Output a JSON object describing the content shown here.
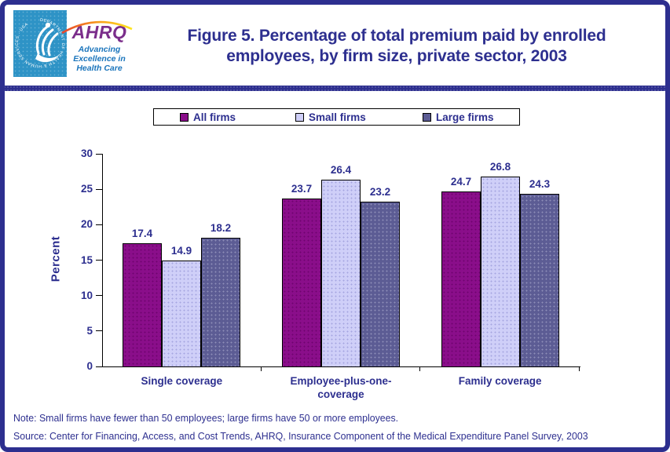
{
  "header": {
    "logo": {
      "hhs_seal_text": "DEPARTMENT OF HEALTH & HUMAN SERVICES · USA",
      "acronym": "AHRQ",
      "tagline": "Advancing\nExcellence in\nHealth Care"
    },
    "title": "Figure 5. Percentage of total premium paid by enrolled\nemployees, by firm size, private sector, 2003"
  },
  "legend": {
    "items": [
      {
        "label": "All firms",
        "color": "#8A0E8A",
        "dot_color": "#6E046E"
      },
      {
        "label": "Small firms",
        "color": "#CFCFF8",
        "dot_color": "#A5A5E0"
      },
      {
        "label": "Large firms",
        "color": "#5C5C94",
        "dot_color": "#8E8EB8"
      }
    ]
  },
  "chart_data": {
    "type": "bar",
    "title": "Percentage of total premium paid by enrolled employees, by firm size, private sector, 2003",
    "categories": [
      "Single coverage",
      "Employee-plus-one-\ncoverage",
      "Family coverage"
    ],
    "series": [
      {
        "name": "All firms",
        "color": "#8A0E8A",
        "dot_color": "#6E046E",
        "values": [
          17.4,
          23.7,
          24.7
        ]
      },
      {
        "name": "Small firms",
        "color": "#CFCFF8",
        "dot_color": "#A5A5E0",
        "values": [
          14.9,
          26.4,
          26.8
        ]
      },
      {
        "name": "Large firms",
        "color": "#5C5C94",
        "dot_color": "#8E8EB8",
        "values": [
          18.2,
          23.2,
          24.3
        ]
      }
    ],
    "xlabel": "",
    "ylabel": "Percent",
    "ylim": [
      0,
      30
    ],
    "yticks": [
      0,
      5,
      10,
      15,
      20,
      25,
      30
    ],
    "grid": false,
    "legend_position": "top-center",
    "value_labels": true,
    "accent_navy": "#2D2F8F"
  },
  "footnotes": {
    "note": "Note: Small firms have fewer than 50 employees; large firms have 50 or more employees.",
    "source": "Source: Center for Financing, Access, and Cost Trends, AHRQ, Insurance Component of the Medical Expenditure Panel Survey, 2003"
  }
}
